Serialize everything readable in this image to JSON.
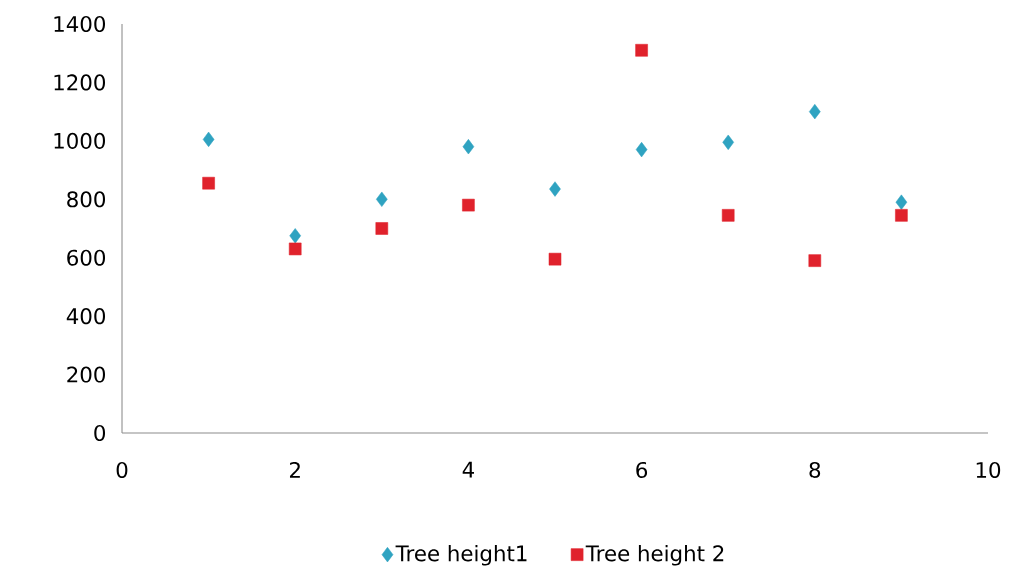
{
  "chart_data": {
    "type": "scatter",
    "x": [
      1,
      2,
      3,
      4,
      5,
      6,
      7,
      8,
      9
    ],
    "series": [
      {
        "name": "Tree height1",
        "color": "#2fa3c1",
        "marker": "diamond",
        "values": [
          1005,
          675,
          800,
          980,
          835,
          970,
          995,
          1100,
          790
        ]
      },
      {
        "name": "Tree height 2",
        "color": "#e0222c",
        "marker": "square",
        "values": [
          855,
          630,
          700,
          780,
          595,
          1310,
          745,
          590,
          745
        ]
      }
    ],
    "xlim": [
      0,
      10
    ],
    "xticks": [
      0,
      2,
      4,
      6,
      8,
      10
    ],
    "ylim": [
      0,
      1400
    ],
    "yticks": [
      0,
      200,
      400,
      600,
      800,
      1000,
      1200,
      1400
    ],
    "grid": false,
    "legend": "bottom"
  }
}
